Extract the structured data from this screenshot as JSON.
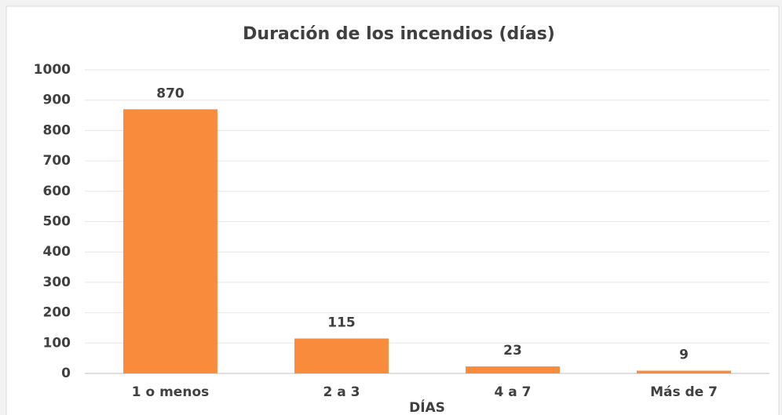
{
  "chart_data": {
    "type": "bar",
    "title": "Duración de los incendios (días)",
    "categories": [
      "1 o menos",
      "2 a 3",
      "4 a 7",
      "Más de 7"
    ],
    "values": [
      870,
      115,
      23,
      9
    ],
    "color": "#f98b3c",
    "x_label": "DÍAS",
    "ylim": [
      0,
      1000
    ],
    "yticks": [
      0,
      100,
      200,
      300,
      400,
      500,
      600,
      700,
      800,
      900,
      1000
    ],
    "grid": true
  }
}
